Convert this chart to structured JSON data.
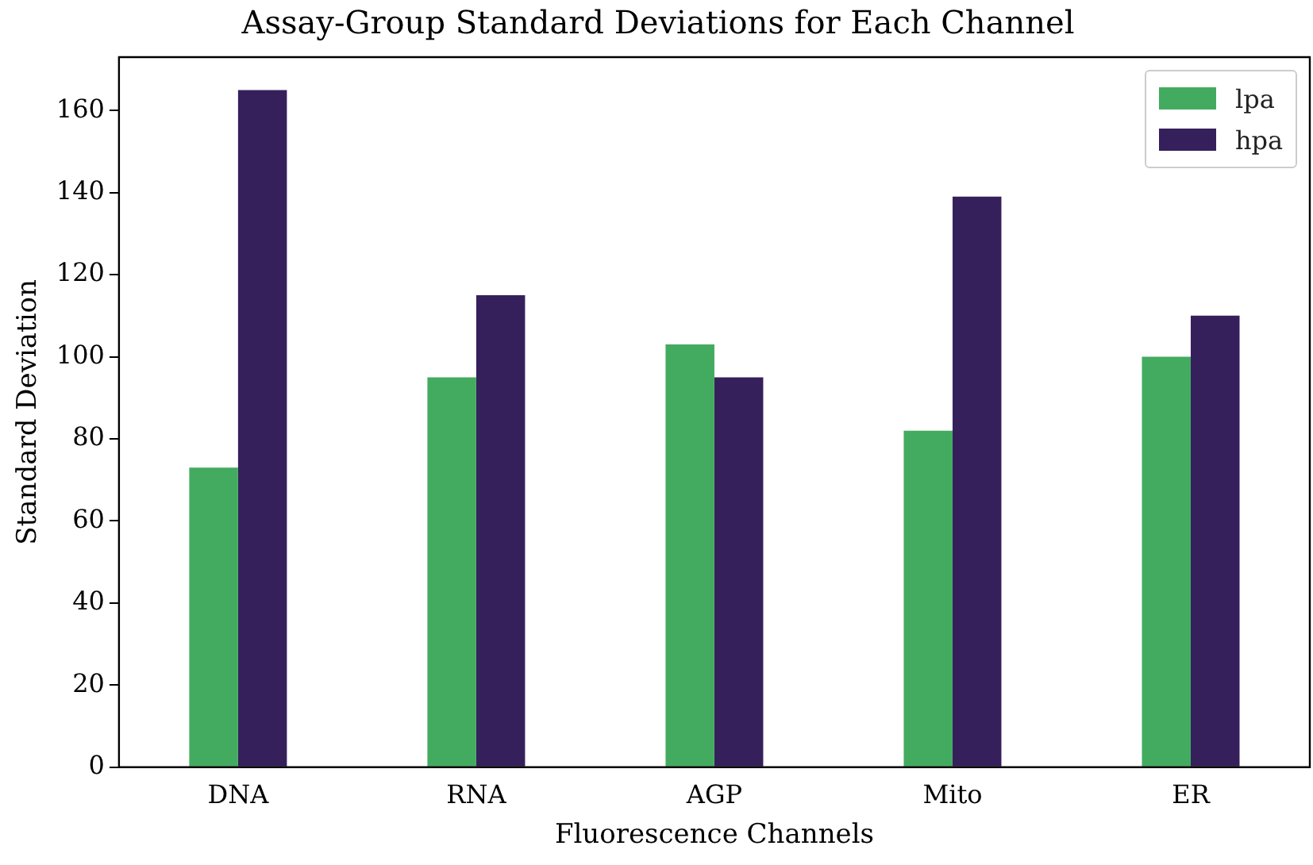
{
  "chart_data": {
    "type": "bar",
    "title": "Assay-Group Standard Deviations for Each Channel",
    "xlabel": "Fluorescence Channels",
    "ylabel": "Standard Deviation",
    "categories": [
      "DNA",
      "RNA",
      "AGP",
      "Mito",
      "ER"
    ],
    "series": [
      {
        "name": "lpa",
        "color": "#43ab5f",
        "values": [
          73,
          95,
          103,
          82,
          100
        ]
      },
      {
        "name": "hpa",
        "color": "#35205c",
        "values": [
          165,
          115,
          95,
          139,
          110
        ]
      }
    ],
    "ylim": [
      0,
      173
    ],
    "yticks": [
      0,
      20,
      40,
      60,
      80,
      100,
      120,
      140,
      160
    ],
    "grid": false,
    "legend": "top right"
  }
}
